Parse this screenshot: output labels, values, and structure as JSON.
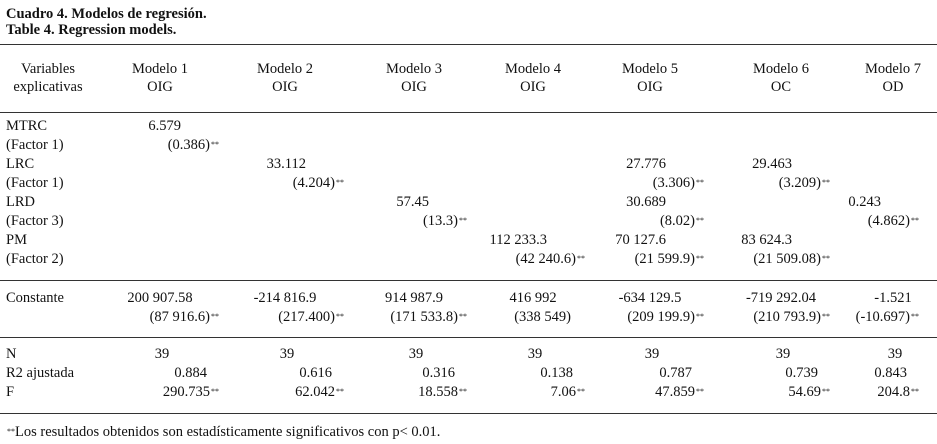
{
  "caption": {
    "es": "Cuadro 4. Modelos de regresión.",
    "en": "Table 4. Regression models."
  },
  "table": {
    "header": {
      "variables_line1": "Variables",
      "variables_line2": "explicativas",
      "models": [
        {
          "name": "Modelo 1",
          "dep": "OIG"
        },
        {
          "name": "Modelo 2",
          "dep": "OIG"
        },
        {
          "name": "Modelo 3",
          "dep": "OIG"
        },
        {
          "name": "Modelo 4",
          "dep": "OIG"
        },
        {
          "name": "Modelo 5",
          "dep": "OIG"
        },
        {
          "name": "Modelo 6",
          "dep": "OC"
        },
        {
          "name": "Modelo 7",
          "dep": "OD"
        }
      ]
    },
    "variables": [
      {
        "name": "MTRC",
        "factor": "(Factor 1)",
        "coef": [
          "6.579",
          "",
          "",
          "",
          "",
          "",
          ""
        ],
        "se": [
          "(0.386)",
          "",
          "",
          "",
          "",
          "",
          ""
        ]
      },
      {
        "name": "LRC",
        "factor": "(Factor 1)",
        "coef": [
          "",
          "33.112",
          "",
          "",
          "27.776",
          "29.463",
          ""
        ],
        "se": [
          "",
          "(4.204)",
          "",
          "",
          "(3.306)",
          "(3.209)",
          ""
        ]
      },
      {
        "name": "LRD",
        "factor": "(Factor 3)",
        "coef": [
          "",
          "",
          "57.45",
          "",
          "30.689",
          "",
          "0.243"
        ],
        "se": [
          "",
          "",
          "(13.3)",
          "",
          "(8.02)",
          "",
          "(4.862)"
        ]
      },
      {
        "name": "PM",
        "factor": "(Factor 2)",
        "coef": [
          "",
          "",
          "",
          "112 233.3",
          "70 127.6",
          "83 624.3",
          ""
        ],
        "se": [
          "",
          "",
          "",
          "(42 240.6)",
          "(21 599.9)",
          "(21 509.08)",
          ""
        ]
      }
    ],
    "constant": {
      "label": "Constante",
      "coef": [
        "200 907.58",
        "-214 816.9",
        "914 987.9",
        "416 992",
        "-634 129.5",
        "-719 292.04",
        "-1.521"
      ],
      "se": [
        "(87 916.6)",
        "(217.400)",
        "(171 533.8)",
        "(338 549)",
        "(209 199.9)",
        "(210 793.9)",
        "(-10.697)"
      ]
    },
    "stats": {
      "n_label": "N",
      "n": [
        "39",
        "39",
        "39",
        "39",
        "39",
        "39",
        "39"
      ],
      "r2_label": "R2 ajustada",
      "r2": [
        "0.884",
        "0.616",
        "0.316",
        "0.138",
        "0.787",
        "0.739",
        "0.843"
      ],
      "f_label": "F",
      "f": [
        "290.735",
        "62.042",
        "18.558",
        "7.06",
        "47.859",
        "54.69",
        "204.8"
      ]
    },
    "significance_mark": "**",
    "footnote": "Los resultados obtenidos son estadísticamente significativos con p< 0.01."
  }
}
